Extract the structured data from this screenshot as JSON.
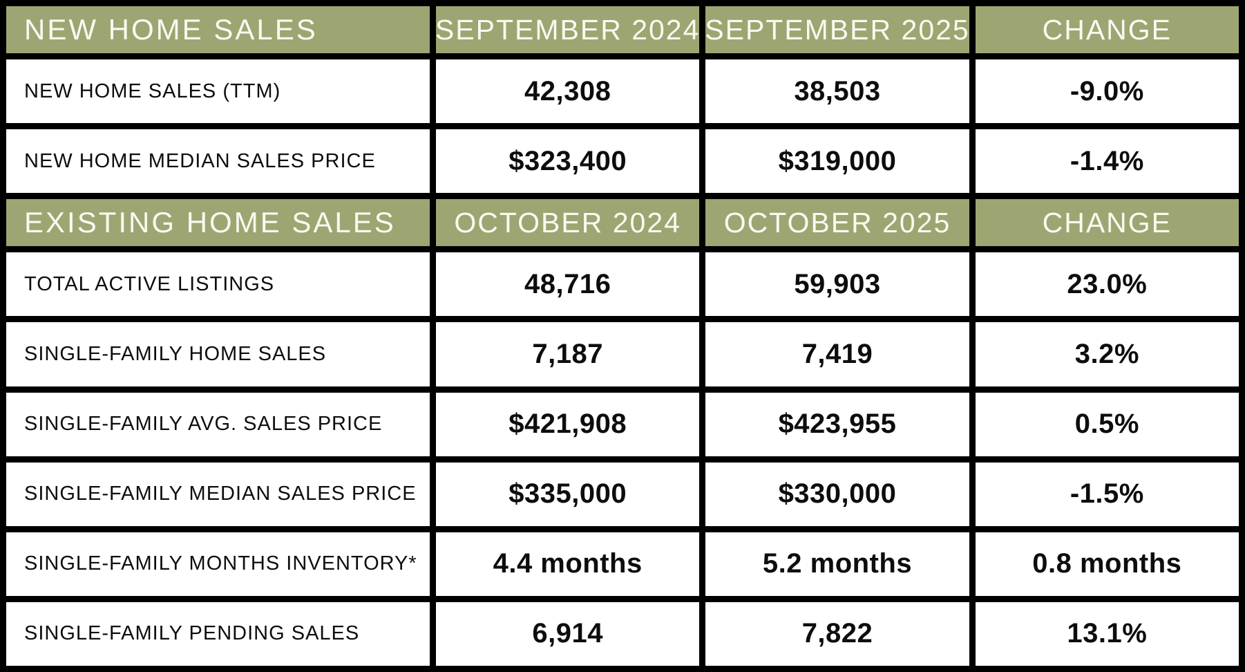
{
  "colors": {
    "header_bg": "#9da672",
    "header_text": "#faf9f0",
    "cell_bg": "#ffffff",
    "border": "#000000",
    "body_text": "#0d0d0d"
  },
  "chart_data": {
    "type": "table",
    "sections": [
      {
        "title": "NEW HOME SALES",
        "columns": [
          "SEPTEMBER 2024",
          "SEPTEMBER 2025",
          "CHANGE"
        ],
        "rows": [
          [
            "NEW HOME SALES (TTM)",
            "42,308",
            "38,503",
            "-9.0%"
          ],
          [
            "NEW HOME MEDIAN SALES PRICE",
            "$323,400",
            "$319,000",
            "-1.4%"
          ]
        ]
      },
      {
        "title": "EXISTING HOME SALES",
        "columns": [
          "OCTOBER 2024",
          "OCTOBER 2025",
          "CHANGE"
        ],
        "rows": [
          [
            "TOTAL ACTIVE LISTINGS",
            "48,716",
            "59,903",
            "23.0%"
          ],
          [
            "SINGLE-FAMILY HOME SALES",
            "7,187",
            "7,419",
            "3.2%"
          ],
          [
            "SINGLE-FAMILY AVG. SALES PRICE",
            "$421,908",
            "$423,955",
            "0.5%"
          ],
          [
            "SINGLE-FAMILY MEDIAN SALES PRICE",
            "$335,000",
            "$330,000",
            "-1.5%"
          ],
          [
            "SINGLE-FAMILY MONTHS INVENTORY*",
            "4.4 months",
            "5.2 months",
            "0.8 months"
          ],
          [
            "SINGLE-FAMILY PENDING SALES",
            "6,914",
            "7,822",
            "13.1%"
          ]
        ]
      }
    ]
  }
}
